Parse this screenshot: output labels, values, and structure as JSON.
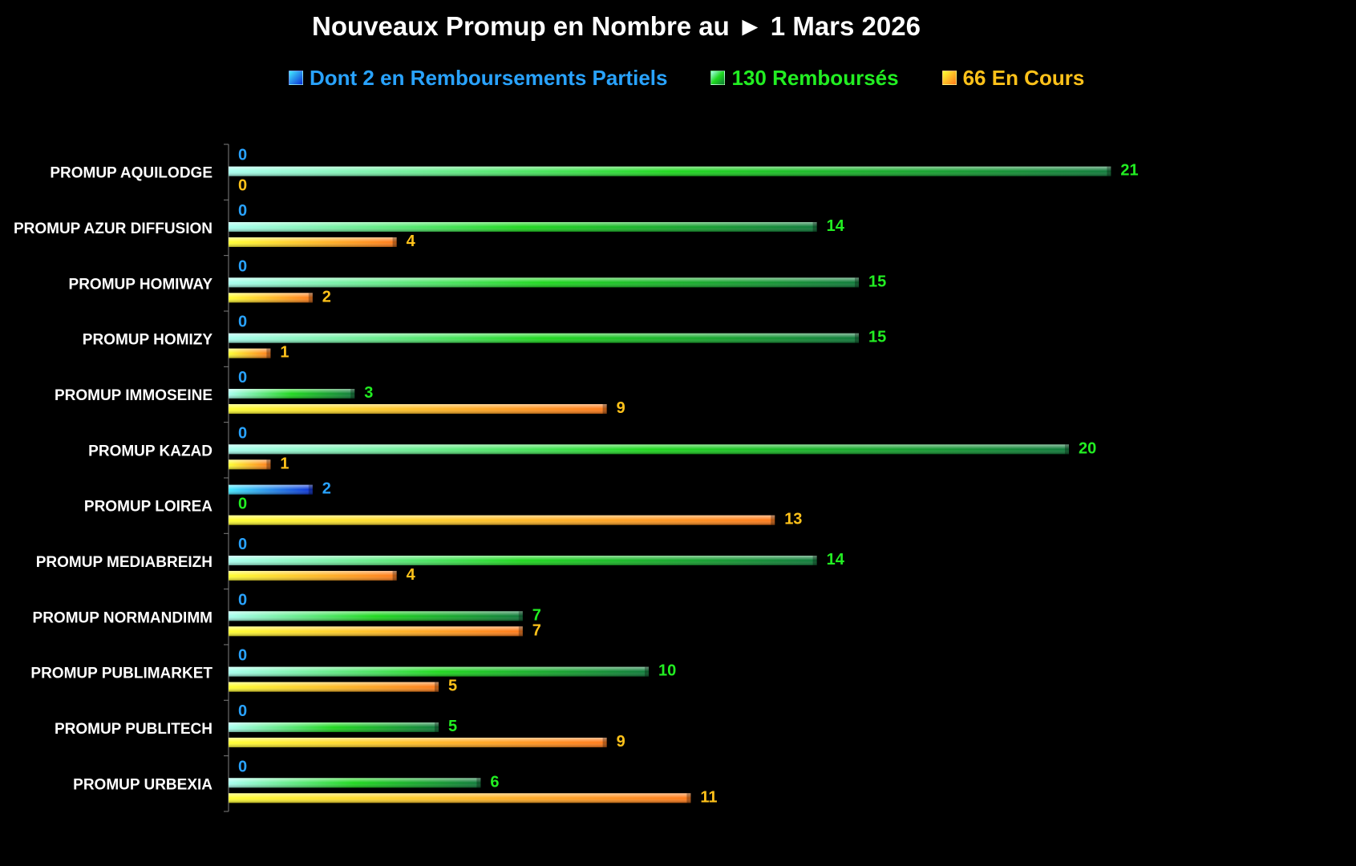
{
  "chart_data": {
    "type": "bar",
    "orientation": "horizontal",
    "title": "Nouveaux Promup en Nombre au ► 1 Mars 2026",
    "legend_position": "top",
    "grid": false,
    "xlim": [
      0,
      21
    ],
    "categories": [
      "PROMUP AQUILODGE",
      "PROMUP AZUR DIFFUSION",
      "PROMUP HOMIWAY",
      "PROMUP HOMIZY",
      "PROMUP IMMOSEINE",
      "PROMUP KAZAD",
      "PROMUP LOIREA",
      "PROMUP MEDIABREIZH",
      "PROMUP NORMANDIMM",
      "PROMUP PUBLIMARKET",
      "PROMUP PUBLITECH",
      "PROMUP URBEXIA"
    ],
    "series": [
      {
        "name": "Dont 2 en Remboursements Partiels",
        "color": "#1ea8ff",
        "label_color": "#29a3ff",
        "gradient": [
          "#44eaff",
          "#0a2fd6"
        ],
        "values": [
          0,
          0,
          0,
          0,
          0,
          0,
          2,
          0,
          0,
          0,
          0,
          0
        ]
      },
      {
        "name": "130 Remboursés",
        "color": "#22dd22",
        "label_color": "#22ee22",
        "gradient": [
          "#a8fff0",
          "#1ed81e",
          "#0f7a3a"
        ],
        "values": [
          21,
          14,
          15,
          15,
          3,
          20,
          0,
          14,
          7,
          10,
          5,
          6
        ]
      },
      {
        "name": "66 En Cours",
        "color": "#ffd11a",
        "label_color": "#ffc21a",
        "gradient": [
          "#ffff33",
          "#ff7a1a"
        ],
        "values": [
          0,
          4,
          2,
          1,
          9,
          1,
          13,
          4,
          7,
          5,
          9,
          11
        ]
      }
    ]
  }
}
